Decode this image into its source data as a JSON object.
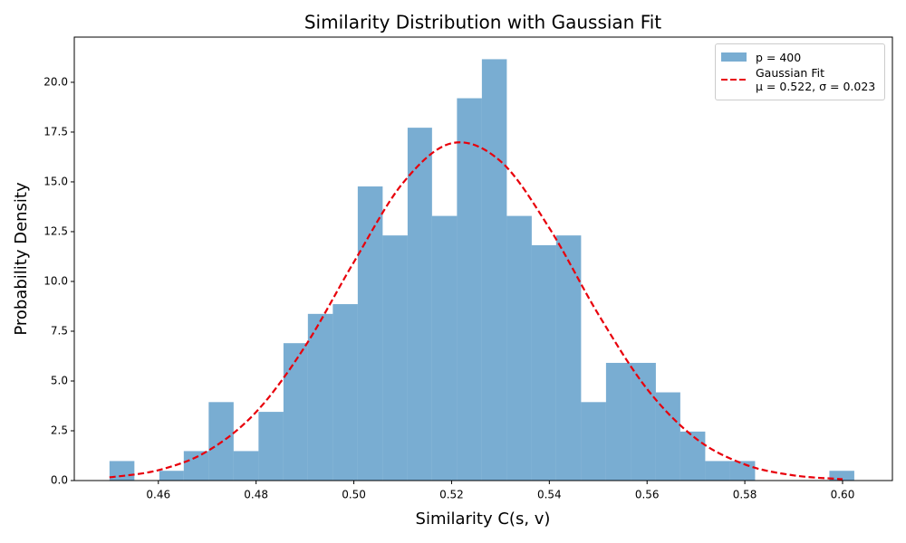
{
  "chart_data": {
    "type": "histogram",
    "title": "Similarity Distribution with Gaussian Fit",
    "x_label": "Similarity C(s, v)",
    "y_label": "Probability Density",
    "bins": [
      0.45,
      0.4551,
      0.4602,
      0.4652,
      0.4703,
      0.4754,
      0.4805,
      0.4856,
      0.4906,
      0.4957,
      0.5008,
      0.5059,
      0.511,
      0.516,
      0.5211,
      0.5262,
      0.5313,
      0.5364,
      0.5414,
      0.5465,
      0.5516,
      0.5567,
      0.5618,
      0.5668,
      0.5719,
      0.577,
      0.5821,
      0.5872,
      0.5922,
      0.5973,
      0.6024
    ],
    "series": [
      {
        "name": "p = 400",
        "color": "#1f77b4",
        "opacity": 0.6,
        "values": [
          0.98,
          0,
          0.49,
          1.48,
          3.94,
          1.48,
          3.45,
          6.9,
          8.37,
          8.86,
          14.77,
          12.31,
          17.72,
          13.29,
          19.2,
          21.16,
          13.29,
          11.82,
          12.31,
          3.94,
          5.91,
          5.91,
          4.43,
          2.46,
          0.98,
          0.98,
          0,
          0,
          0,
          0.49
        ]
      }
    ],
    "lines": [
      {
        "name": "Gaussian Fit\nμ = 0.522, σ = 0.023",
        "color": "#e8000b",
        "style": "dashed",
        "x": [
          0.45,
          0.46,
          0.47,
          0.48,
          0.49,
          0.5,
          0.51,
          0.52,
          0.53,
          0.54,
          0.55,
          0.56,
          0.57,
          0.58,
          0.59,
          0.6
        ],
        "values": [
          0.16,
          0.52,
          1.47,
          3.44,
          6.73,
          10.97,
          14.93,
          16.94,
          16.04,
          12.68,
          8.36,
          4.6,
          2.11,
          0.81,
          0.26,
          0.07
        ]
      }
    ],
    "xlim": [
      0.4428,
      0.6102
    ],
    "ylim": [
      0,
      22.27
    ],
    "xticks": [
      0.46,
      0.48,
      {
        "value": 0.5,
        "label": "0.50"
      },
      0.52,
      0.54,
      0.56,
      0.58,
      {
        "value": 0.6,
        "label": "0.60"
      }
    ],
    "yticks": [
      {
        "value": 0,
        "label": "0.0"
      },
      2.5,
      {
        "value": 5,
        "label": "5.0"
      },
      7.5,
      {
        "value": 10,
        "label": "10.0"
      },
      12.5,
      {
        "value": 15,
        "label": "15.0"
      },
      17.5,
      {
        "value": 20,
        "label": "20.0"
      }
    ],
    "legend": "upper right"
  }
}
